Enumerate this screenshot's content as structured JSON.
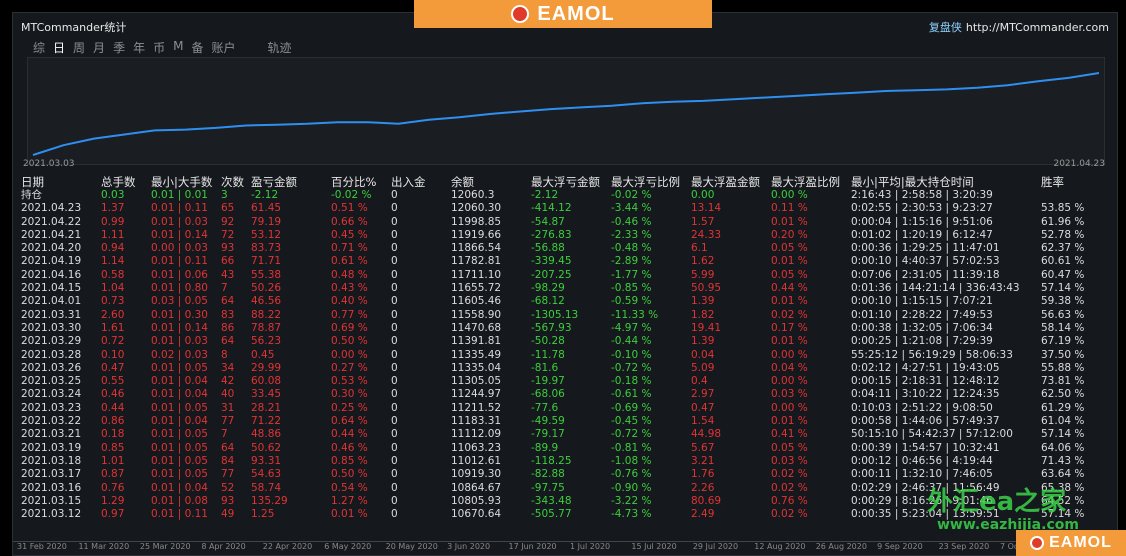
{
  "window": {
    "title": "MTCommander统计"
  },
  "brand": {
    "cn": "复盘侠",
    "url": "http://MTCommander.com"
  },
  "banner": {
    "text": "EAMOL"
  },
  "tabs": [
    "综",
    "日",
    "周",
    "月",
    "季",
    "年",
    "币",
    "M",
    "备",
    "账户",
    "轨迹"
  ],
  "chart": {
    "start": "2021.03.03",
    "end": "2021.04.23"
  },
  "chart_data": {
    "type": "line",
    "x_start": "2021.03.03",
    "x_end": "2021.04.23",
    "values": [
      0,
      0.12,
      0.2,
      0.25,
      0.3,
      0.31,
      0.33,
      0.36,
      0.37,
      0.38,
      0.4,
      0.4,
      0.38,
      0.43,
      0.46,
      0.5,
      0.53,
      0.56,
      0.58,
      0.6,
      0.63,
      0.65,
      0.66,
      0.68,
      0.7,
      0.72,
      0.74,
      0.76,
      0.78,
      0.79,
      0.8,
      0.82,
      0.85,
      0.9,
      0.94,
      1.0
    ]
  },
  "table": {
    "headers": [
      "日期",
      "总手数",
      "最小|大手数",
      "次数",
      "盈亏金额",
      "百分比%",
      "出入金",
      "余额",
      "最大浮亏金额",
      "最大浮亏比例",
      "最大浮盈金额",
      "最大浮盈比例",
      "最小|平均|最大持仓时间",
      "胜率"
    ],
    "holding": {
      "label": "持仓",
      "cells": [
        "0.03",
        "0.01 | 0.01",
        "3",
        "-2.12",
        "-0.02 %",
        "0",
        "12060.3",
        "-2.12",
        "-0.02 %",
        "0.00",
        "0.00 %",
        "2:16:43 | 2:58:58 | 3:20:39",
        ""
      ]
    },
    "rows": [
      [
        "2021.04.23",
        "1.37",
        "0.01 | 0.11",
        "65",
        "61.45",
        "0.51 %",
        "0",
        "12060.30",
        "-414.12",
        "-3.44 %",
        "13.14",
        "0.11 %",
        "0:02:55 | 2:30:53 | 9:23:27",
        "53.85 %"
      ],
      [
        "2021.04.22",
        "0.99",
        "0.01 | 0.03",
        "92",
        "79.19",
        "0.66 %",
        "0",
        "11998.85",
        "-54.87",
        "-0.46 %",
        "1.57",
        "0.01 %",
        "0:00:04 | 1:15:16 | 9:51:06",
        "61.96 %"
      ],
      [
        "2021.04.21",
        "1.11",
        "0.01 | 0.14",
        "72",
        "53.12",
        "0.45 %",
        "0",
        "11919.66",
        "-276.83",
        "-2.33 %",
        "24.33",
        "0.20 %",
        "0:01:02 | 1:20:19 | 6:12:47",
        "52.78 %"
      ],
      [
        "2021.04.20",
        "0.94",
        "0.00 | 0.03",
        "93",
        "83.73",
        "0.71 %",
        "0",
        "11866.54",
        "-56.88",
        "-0.48 %",
        "6.1",
        "0.05 %",
        "0:00:36 | 1:29:25 | 11:47:01",
        "62.37 %"
      ],
      [
        "2021.04.19",
        "1.14",
        "0.01 | 0.11",
        "66",
        "71.71",
        "0.61 %",
        "0",
        "11782.81",
        "-339.45",
        "-2.89 %",
        "1.62",
        "0.01 %",
        "0:00:10 | 4:40:37 | 57:02:53",
        "60.61 %"
      ],
      [
        "2021.04.16",
        "0.58",
        "0.01 | 0.06",
        "43",
        "55.38",
        "0.48 %",
        "0",
        "11711.10",
        "-207.25",
        "-1.77 %",
        "5.99",
        "0.05 %",
        "0:07:06 | 2:31:05 | 11:39:18",
        "60.47 %"
      ],
      [
        "2021.04.15",
        "1.04",
        "0.01 | 0.80",
        "7",
        "50.26",
        "0.43 %",
        "0",
        "11655.72",
        "-98.29",
        "-0.85 %",
        "50.95",
        "0.44 %",
        "0:01:36 | 144:21:14 | 336:43:43",
        "57.14 %"
      ],
      [
        "2021.04.01",
        "0.73",
        "0.03 | 0.05",
        "64",
        "46.56",
        "0.40 %",
        "0",
        "11605.46",
        "-68.12",
        "-0.59 %",
        "1.39",
        "0.01 %",
        "0:00:10 | 1:15:15 | 7:07:21",
        "59.38 %"
      ],
      [
        "2021.03.31",
        "2.60",
        "0.01 | 0.30",
        "83",
        "88.22",
        "0.77 %",
        "0",
        "11558.90",
        "-1305.13",
        "-11.33 %",
        "1.82",
        "0.02 %",
        "0:01:10 | 2:28:22 | 7:49:53",
        "56.63 %"
      ],
      [
        "2021.03.30",
        "1.61",
        "0.01 | 0.14",
        "86",
        "78.87",
        "0.69 %",
        "0",
        "11470.68",
        "-567.93",
        "-4.97 %",
        "19.41",
        "0.17 %",
        "0:00:38 | 1:32:05 | 7:06:34",
        "58.14 %"
      ],
      [
        "2021.03.29",
        "0.72",
        "0.01 | 0.03",
        "64",
        "56.23",
        "0.50 %",
        "0",
        "11391.81",
        "-50.28",
        "-0.44 %",
        "1.39",
        "0.01 %",
        "0:00:25 | 1:21:08 | 7:29:39",
        "67.19 %"
      ],
      [
        "2021.03.28",
        "0.10",
        "0.02 | 0.03",
        "8",
        "0.45",
        "0.00 %",
        "0",
        "11335.49",
        "-11.78",
        "-0.10 %",
        "0.04",
        "0.00 %",
        "55:25:12 | 56:19:29 | 58:06:33",
        "37.50 %"
      ],
      [
        "2021.03.26",
        "0.47",
        "0.01 | 0.05",
        "34",
        "29.99",
        "0.27 %",
        "0",
        "11335.04",
        "-81.6",
        "-0.72 %",
        "5.09",
        "0.04 %",
        "0:02:12 | 4:27:51 | 19:43:05",
        "55.88 %"
      ],
      [
        "2021.03.25",
        "0.55",
        "0.01 | 0.04",
        "42",
        "60.08",
        "0.53 %",
        "0",
        "11305.05",
        "-19.97",
        "-0.18 %",
        "0.4",
        "0.00 %",
        "0:00:15 | 2:18:31 | 12:48:12",
        "73.81 %"
      ],
      [
        "2021.03.24",
        "0.46",
        "0.01 | 0.04",
        "40",
        "33.45",
        "0.30 %",
        "0",
        "11244.97",
        "-68.06",
        "-0.61 %",
        "2.97",
        "0.03 %",
        "0:04:11 | 3:10:22 | 12:24:35",
        "62.50 %"
      ],
      [
        "2021.03.23",
        "0.44",
        "0.01 | 0.05",
        "31",
        "28.21",
        "0.25 %",
        "0",
        "11211.52",
        "-77.6",
        "-0.69 %",
        "0.47",
        "0.00 %",
        "0:10:03 | 2:51:22 | 9:08:50",
        "61.29 %"
      ],
      [
        "2021.03.22",
        "0.86",
        "0.01 | 0.04",
        "77",
        "71.22",
        "0.64 %",
        "0",
        "11183.31",
        "-49.59",
        "-0.45 %",
        "1.54",
        "0.01 %",
        "0:00:58 | 1:44:06 | 57:49:37",
        "61.04 %"
      ],
      [
        "2021.03.21",
        "0.18",
        "0.01 | 0.05",
        "7",
        "48.86",
        "0.44 %",
        "0",
        "11112.09",
        "-79.17",
        "-0.72 %",
        "44.98",
        "0.41 %",
        "50:15:10 | 54:42:37 | 57:12:00",
        "57.14 %"
      ],
      [
        "2021.03.19",
        "0.85",
        "0.01 | 0.05",
        "64",
        "50.62",
        "0.46 %",
        "0",
        "11063.23",
        "-89.9",
        "-0.81 %",
        "5.67",
        "0.05 %",
        "0:00:39 | 1:54:57 | 10:32:41",
        "64.06 %"
      ],
      [
        "2021.03.18",
        "1.01",
        "0.01 | 0.05",
        "84",
        "93.31",
        "0.85 %",
        "0",
        "11012.61",
        "-118.25",
        "-1.08 %",
        "3.21",
        "0.03 %",
        "0:00:12 | 0:46:56 | 4:19:44",
        "71.43 %"
      ],
      [
        "2021.03.17",
        "0.87",
        "0.01 | 0.05",
        "77",
        "54.63",
        "0.50 %",
        "0",
        "10919.30",
        "-82.88",
        "-0.76 %",
        "1.76",
        "0.02 %",
        "0:00:11 | 1:32:10 | 7:46:05",
        "63.64 %"
      ],
      [
        "2021.03.16",
        "0.76",
        "0.01 | 0.04",
        "52",
        "58.74",
        "0.54 %",
        "0",
        "10864.67",
        "-97.75",
        "-0.90 %",
        "2.26",
        "0.02 %",
        "0:02:29 | 2:46:37 | 11:56:49",
        "65.38 %"
      ],
      [
        "2021.03.15",
        "1.29",
        "0.01 | 0.08",
        "93",
        "135.29",
        "1.27 %",
        "0",
        "10805.93",
        "-343.48",
        "-3.22 %",
        "80.69",
        "0.76 %",
        "0:00:29 | 8:16:26 | 9:01:46",
        "64.52 %"
      ],
      [
        "2021.03.12",
        "0.97",
        "0.01 | 0.11",
        "49",
        "1.25",
        "0.01 %",
        "0",
        "10670.64",
        "-505.77",
        "-4.73 %",
        "2.49",
        "0.02 %",
        "0:00:35 | 5:23:04 | 13:59:51",
        "57.14 %"
      ]
    ]
  },
  "watermark": {
    "cn": "外汇ea之家",
    "url": "www.eazhijia.com"
  },
  "axis_labels": [
    "31 Feb 2020",
    "11 Mar 2020",
    "25 Mar 2020",
    "8 Apr 2020",
    "22 Apr 2020",
    "6 May 2020",
    "20 May 2020",
    "3 Jun 2020",
    "17 Jun 2020",
    "1 Jul 2020",
    "15 Jul 2020",
    "29 Jul 2020",
    "12 Aug 2020",
    "26 Aug 2020",
    "9 Sep 2020",
    "23 Sep 2020",
    "7 Oct 2020",
    "21 Oct 2020"
  ]
}
